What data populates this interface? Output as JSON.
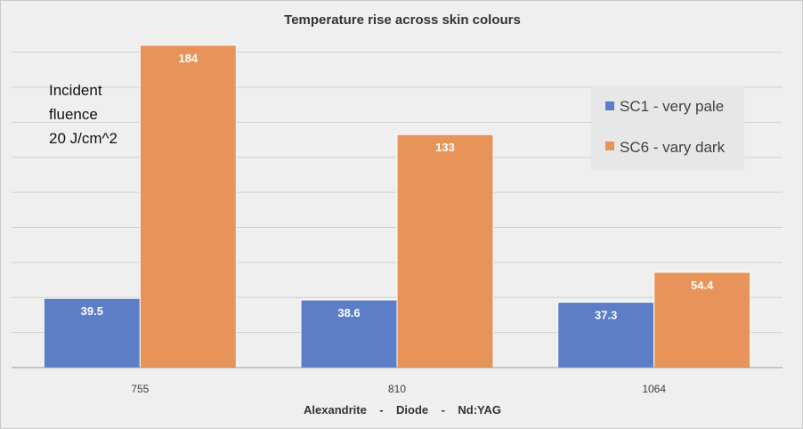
{
  "chart_data": {
    "type": "bar",
    "title": "Temperature rise across skin colours",
    "xlabel": "Alexandrite    -    Diode    -    Nd:YAG",
    "ylabel": "",
    "categories": [
      "755",
      "810",
      "1064"
    ],
    "series": [
      {
        "name": "SC1 - very pale",
        "values": [
          39.5,
          38.6,
          37.3
        ],
        "color": "#5b7ec7"
      },
      {
        "name": "SC6 - vary dark",
        "values": [
          184,
          133,
          54.4
        ],
        "color": "#e8935a"
      }
    ],
    "ylim": [
      0,
      190
    ],
    "grid": true,
    "legend": "top-right",
    "annotation": [
      "Incident",
      "fluence",
      "20 J/cm^2"
    ]
  }
}
